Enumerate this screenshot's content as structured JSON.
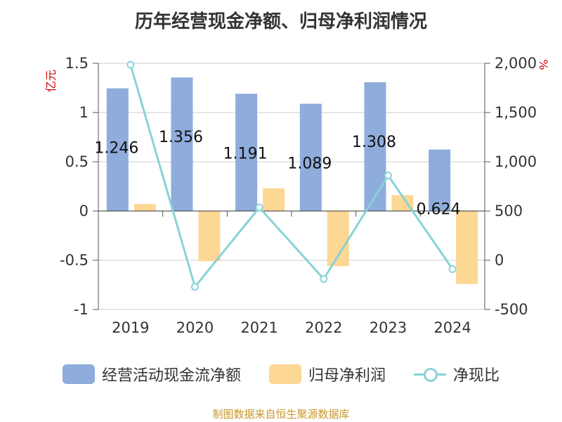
{
  "title": "历年经营现金净额、归母净利润情况",
  "source": "制图数据来自恒生聚源数据库",
  "colors": {
    "ocf": "#8eacdc",
    "np": "#fdd794",
    "ratio": "#88d3d7",
    "unit": "#d40000"
  },
  "chart_data": {
    "type": "bar",
    "title": "历年经营现金净额、归母净利润情况",
    "categories": [
      "2019",
      "2020",
      "2021",
      "2022",
      "2023",
      "2024"
    ],
    "series": [
      {
        "name": "经营活动现金流净额",
        "type": "bar",
        "axis": "left",
        "values": [
          1.246,
          1.356,
          1.191,
          1.089,
          1.308,
          0.624
        ],
        "labels": [
          "1.246",
          "1.356",
          "1.191",
          "1.089",
          "1.308",
          "0.624"
        ]
      },
      {
        "name": "归母净利润",
        "type": "bar",
        "axis": "left",
        "values": [
          0.07,
          -0.51,
          0.23,
          -0.56,
          0.16,
          -0.74
        ]
      },
      {
        "name": "净现比",
        "type": "line",
        "axis": "right",
        "values": [
          1985,
          -270,
          535,
          -190,
          860,
          -90
        ]
      }
    ],
    "left_axis": {
      "unit": "亿元",
      "ylim": [
        -1,
        1.5
      ],
      "ticks": [
        "-1",
        "-0.5",
        "0",
        "0.5",
        "1",
        "1.5"
      ]
    },
    "right_axis": {
      "unit": "%",
      "ylim": [
        -500,
        2000
      ],
      "ticks": [
        "-500",
        "0",
        "500",
        "1,000",
        "1,500",
        "2,000"
      ]
    },
    "legend_position": "bottom",
    "grid": true
  }
}
